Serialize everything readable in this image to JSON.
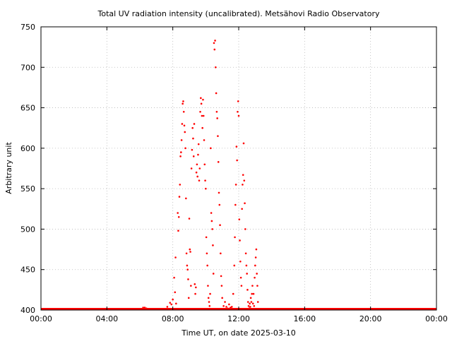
{
  "chart_data": {
    "type": "scatter",
    "title": "Total UV radiation intensity (uncalibrated). Metsähovi Radio Observatory",
    "xlabel": "Time UT, on date 2025-03-10",
    "ylabel": "Arbitrary unit",
    "xlim": [
      "00:00",
      "24:00"
    ],
    "ylim": [
      400,
      750
    ],
    "x_ticks": [
      "00:00",
      "04:00",
      "08:00",
      "12:00",
      "16:00",
      "20:00",
      "00:00"
    ],
    "y_ticks": [
      400,
      450,
      500,
      550,
      600,
      650,
      700,
      750
    ],
    "grid": true,
    "series_color": "#ff0000",
    "baseline": {
      "y": 400,
      "from": "00:00",
      "to": "24:00"
    },
    "points": [
      [
        "06:12",
        403
      ],
      [
        "06:18",
        403
      ],
      [
        "06:24",
        402
      ],
      [
        "07:40",
        404
      ],
      [
        "07:50",
        409
      ],
      [
        "07:55",
        407
      ],
      [
        "08:00",
        413
      ],
      [
        "08:05",
        440
      ],
      [
        "08:08",
        422
      ],
      [
        "08:10",
        465
      ],
      [
        "08:12",
        408
      ],
      [
        "08:18",
        520
      ],
      [
        "08:20",
        498
      ],
      [
        "08:22",
        515
      ],
      [
        "08:24",
        540
      ],
      [
        "08:26",
        555
      ],
      [
        "08:28",
        590
      ],
      [
        "08:30",
        595
      ],
      [
        "08:32",
        610
      ],
      [
        "08:34",
        630
      ],
      [
        "08:36",
        655
      ],
      [
        "08:38",
        658
      ],
      [
        "08:40",
        645
      ],
      [
        "08:42",
        628
      ],
      [
        "08:44",
        620
      ],
      [
        "08:46",
        600
      ],
      [
        "08:48",
        538
      ],
      [
        "08:50",
        470
      ],
      [
        "08:52",
        455
      ],
      [
        "08:54",
        450
      ],
      [
        "08:56",
        438
      ],
      [
        "08:58",
        415
      ],
      [
        "09:00",
        513
      ],
      [
        "09:02",
        475
      ],
      [
        "09:04",
        472
      ],
      [
        "09:06",
        430
      ],
      [
        "09:08",
        575
      ],
      [
        "09:10",
        598
      ],
      [
        "09:12",
        625
      ],
      [
        "09:14",
        612
      ],
      [
        "09:16",
        590
      ],
      [
        "09:18",
        630
      ],
      [
        "09:20",
        432
      ],
      [
        "09:22",
        420
      ],
      [
        "09:24",
        428
      ],
      [
        "09:26",
        570
      ],
      [
        "09:28",
        580
      ],
      [
        "09:30",
        565
      ],
      [
        "09:32",
        592
      ],
      [
        "09:34",
        605
      ],
      [
        "09:36",
        560
      ],
      [
        "09:38",
        575
      ],
      [
        "09:40",
        645
      ],
      [
        "09:42",
        662
      ],
      [
        "09:44",
        655
      ],
      [
        "09:46",
        640
      ],
      [
        "09:48",
        625
      ],
      [
        "09:50",
        660
      ],
      [
        "09:52",
        640
      ],
      [
        "09:54",
        610
      ],
      [
        "09:56",
        580
      ],
      [
        "09:58",
        560
      ],
      [
        "10:00",
        550
      ],
      [
        "10:02",
        490
      ],
      [
        "10:04",
        470
      ],
      [
        "10:06",
        455
      ],
      [
        "10:08",
        430
      ],
      [
        "10:10",
        415
      ],
      [
        "10:12",
        410
      ],
      [
        "10:14",
        405
      ],
      [
        "10:16",
        420
      ],
      [
        "10:18",
        600
      ],
      [
        "10:20",
        520
      ],
      [
        "10:22",
        510
      ],
      [
        "10:24",
        500
      ],
      [
        "10:26",
        480
      ],
      [
        "10:28",
        445
      ],
      [
        "10:30",
        730
      ],
      [
        "10:32",
        722
      ],
      [
        "10:34",
        733
      ],
      [
        "10:36",
        700
      ],
      [
        "10:38",
        668
      ],
      [
        "10:40",
        645
      ],
      [
        "10:42",
        637
      ],
      [
        "10:44",
        615
      ],
      [
        "10:46",
        583
      ],
      [
        "10:48",
        545
      ],
      [
        "10:50",
        530
      ],
      [
        "10:52",
        505
      ],
      [
        "10:54",
        470
      ],
      [
        "10:56",
        442
      ],
      [
        "10:58",
        430
      ],
      [
        "11:00",
        415
      ],
      [
        "11:05",
        405
      ],
      [
        "11:10",
        410
      ],
      [
        "11:15",
        404
      ],
      [
        "11:20",
        402
      ],
      [
        "11:25",
        407
      ],
      [
        "11:30",
        403
      ],
      [
        "11:35",
        404
      ],
      [
        "11:40",
        420
      ],
      [
        "11:44",
        455
      ],
      [
        "11:46",
        490
      ],
      [
        "11:48",
        530
      ],
      [
        "11:50",
        555
      ],
      [
        "11:52",
        602
      ],
      [
        "11:54",
        585
      ],
      [
        "11:56",
        645
      ],
      [
        "11:58",
        658
      ],
      [
        "12:00",
        640
      ],
      [
        "12:02",
        512
      ],
      [
        "12:04",
        486
      ],
      [
        "12:06",
        460
      ],
      [
        "12:08",
        440
      ],
      [
        "12:10",
        430
      ],
      [
        "12:12",
        525
      ],
      [
        "12:14",
        555
      ],
      [
        "12:16",
        567
      ],
      [
        "12:18",
        606
      ],
      [
        "12:20",
        560
      ],
      [
        "12:22",
        532
      ],
      [
        "12:24",
        500
      ],
      [
        "12:26",
        470
      ],
      [
        "12:28",
        455
      ],
      [
        "12:30",
        445
      ],
      [
        "12:32",
        425
      ],
      [
        "12:34",
        410
      ],
      [
        "12:36",
        405
      ],
      [
        "12:38",
        402
      ],
      [
        "12:40",
        408
      ],
      [
        "12:42",
        404
      ],
      [
        "12:44",
        415
      ],
      [
        "12:46",
        410
      ],
      [
        "12:48",
        420
      ],
      [
        "12:50",
        430
      ],
      [
        "12:52",
        408
      ],
      [
        "12:54",
        420
      ],
      [
        "12:56",
        405
      ],
      [
        "12:58",
        440
      ],
      [
        "13:00",
        455
      ],
      [
        "13:02",
        465
      ],
      [
        "13:04",
        475
      ],
      [
        "13:06",
        445
      ],
      [
        "13:08",
        430
      ],
      [
        "13:10",
        410
      ]
    ]
  }
}
